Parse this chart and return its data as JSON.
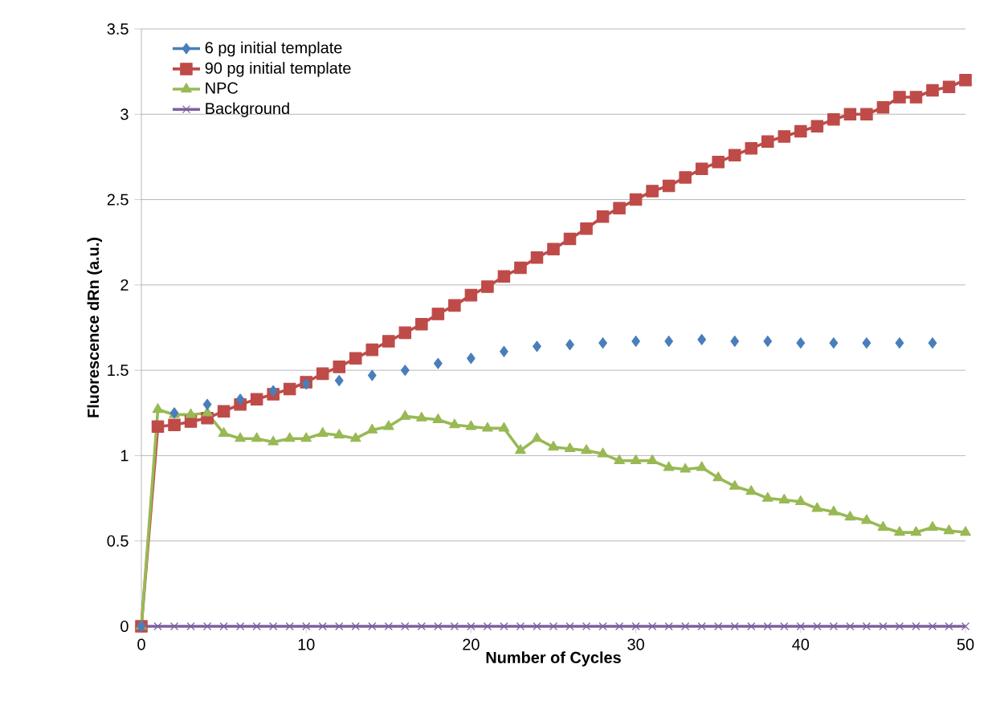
{
  "chart_data": {
    "type": "line",
    "xlabel": "Number of Cycles",
    "ylabel": "Fluorescence dRn (a.u.)",
    "x": [
      0,
      1,
      2,
      3,
      4,
      5,
      6,
      7,
      8,
      9,
      10,
      11,
      12,
      13,
      14,
      15,
      16,
      17,
      18,
      19,
      20,
      21,
      22,
      23,
      24,
      25,
      26,
      27,
      28,
      29,
      30,
      31,
      32,
      33,
      34,
      35,
      36,
      37,
      38,
      39,
      40,
      41,
      42,
      43,
      44,
      45,
      46,
      47,
      48,
      49,
      50
    ],
    "xlim": [
      0,
      50
    ],
    "xticks": [
      0,
      10,
      20,
      30,
      40,
      50
    ],
    "ylim": [
      0,
      3.5
    ],
    "yticks": [
      0,
      0.5,
      1,
      1.5,
      2,
      2.5,
      3,
      3.5
    ],
    "grid": "y",
    "legend": "top left",
    "series": [
      {
        "name": "6 pg initial template",
        "color": "#4a7ebb",
        "marker": "diamond",
        "values": [
          0,
          null,
          1.25,
          null,
          1.3,
          null,
          1.33,
          null,
          1.38,
          null,
          1.42,
          null,
          1.44,
          null,
          1.47,
          null,
          1.5,
          null,
          1.54,
          null,
          1.57,
          null,
          1.61,
          null,
          1.64,
          null,
          1.65,
          null,
          1.66,
          null,
          1.67,
          null,
          1.67,
          null,
          1.68,
          null,
          1.67,
          null,
          1.67,
          null,
          1.66,
          null,
          1.66,
          null,
          1.66,
          null,
          1.66,
          null,
          1.66,
          null,
          null
        ]
      },
      {
        "name": "90 pg initial template",
        "color": "#be4b48",
        "marker": "square",
        "values": [
          0,
          1.17,
          1.18,
          1.2,
          1.22,
          1.26,
          1.3,
          1.33,
          1.36,
          1.39,
          1.43,
          1.48,
          1.52,
          1.57,
          1.62,
          1.67,
          1.72,
          1.77,
          1.83,
          1.88,
          1.94,
          1.99,
          2.05,
          2.1,
          2.16,
          2.21,
          2.27,
          2.33,
          2.4,
          2.45,
          2.5,
          2.55,
          2.58,
          2.63,
          2.68,
          2.72,
          2.76,
          2.8,
          2.84,
          2.87,
          2.9,
          2.93,
          2.97,
          3.0,
          3.0,
          3.04,
          3.1,
          3.1,
          3.14,
          3.16,
          3.2
        ]
      },
      {
        "name": "NPC",
        "color": "#98b954",
        "marker": "triangle",
        "values": [
          0,
          1.27,
          1.24,
          1.24,
          1.25,
          1.13,
          1.1,
          1.1,
          1.08,
          1.1,
          1.1,
          1.13,
          1.12,
          1.1,
          1.15,
          1.17,
          1.23,
          1.22,
          1.21,
          1.18,
          1.17,
          1.16,
          1.16,
          1.03,
          1.1,
          1.05,
          1.04,
          1.03,
          1.01,
          0.97,
          0.97,
          0.97,
          0.93,
          0.92,
          0.93,
          0.87,
          0.82,
          0.79,
          0.75,
          0.74,
          0.73,
          0.69,
          0.67,
          0.64,
          0.62,
          0.58,
          0.55,
          0.55,
          0.58,
          0.56,
          0.55
        ]
      },
      {
        "name": "Background",
        "color": "#7d60a0",
        "marker": "cross",
        "values": [
          0,
          0,
          0,
          0,
          0,
          0,
          0,
          0,
          0,
          0,
          0,
          0,
          0,
          0,
          0,
          0,
          0,
          0,
          0,
          0,
          0,
          0,
          0,
          0,
          0,
          0,
          0,
          0,
          0,
          0,
          0,
          0,
          0,
          0,
          0,
          0,
          0,
          0,
          0,
          0,
          0,
          0,
          0,
          0,
          0,
          0,
          0,
          0,
          0,
          0,
          0
        ]
      }
    ]
  }
}
